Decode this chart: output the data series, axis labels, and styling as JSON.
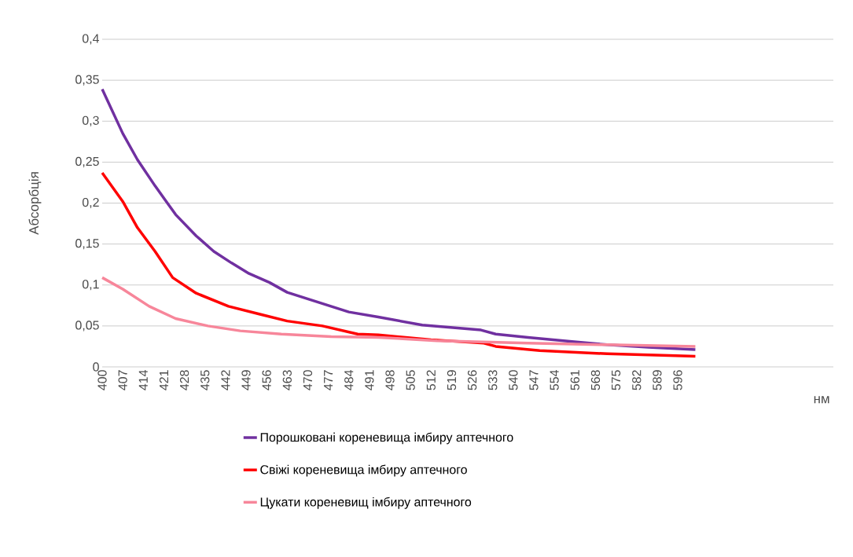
{
  "chart_data": {
    "type": "line",
    "ylabel": "Абсорбція",
    "xlabel": "нм",
    "xlim": [
      400,
      649
    ],
    "ylim": [
      0,
      0.4
    ],
    "xticks": [
      400,
      407,
      414,
      421,
      428,
      435,
      442,
      449,
      456,
      463,
      470,
      477,
      484,
      491,
      498,
      505,
      512,
      519,
      526,
      533,
      540,
      547,
      554,
      561,
      568,
      575,
      582,
      589,
      596
    ],
    "yticks": [
      {
        "value": 0,
        "label": "0"
      },
      {
        "value": 0.05,
        "label": "0,05"
      },
      {
        "value": 0.1,
        "label": "0,1"
      },
      {
        "value": 0.15,
        "label": "0,15"
      },
      {
        "value": 0.2,
        "label": "0,2"
      },
      {
        "value": 0.25,
        "label": "0,25"
      },
      {
        "value": 0.3,
        "label": "0,3"
      },
      {
        "value": 0.35,
        "label": "0,35"
      },
      {
        "value": 0.4,
        "label": "0,4"
      }
    ],
    "grid": "y",
    "legend": "bottom",
    "marker": "none",
    "line_style": "solid",
    "series": [
      {
        "name": "Порошковані кореневища імбиру аптечного",
        "color": "#7030a0",
        "x": [
          400,
          407,
          412,
          418,
          425,
          432,
          438,
          444,
          450,
          457,
          463,
          470,
          477,
          484,
          494,
          509,
          529,
          534,
          545,
          560,
          572,
          586,
          602
        ],
        "values": [
          0.339,
          0.285,
          0.253,
          0.221,
          0.186,
          0.16,
          0.141,
          0.127,
          0.114,
          0.103,
          0.091,
          0.083,
          0.075,
          0.067,
          0.061,
          0.051,
          0.045,
          0.04,
          0.036,
          0.031,
          0.027,
          0.024,
          0.021
        ]
      },
      {
        "name": "Свіжі кореневища імбиру аптечного",
        "color": "#ff0000",
        "x": [
          400,
          407,
          412,
          418,
          424,
          432,
          443,
          454,
          463,
          475,
          487,
          494,
          512,
          530,
          534,
          549,
          572,
          593,
          602
        ],
        "values": [
          0.237,
          0.202,
          0.17,
          0.141,
          0.109,
          0.09,
          0.074,
          0.064,
          0.056,
          0.05,
          0.04,
          0.039,
          0.033,
          0.029,
          0.025,
          0.02,
          0.016,
          0.014,
          0.013
        ]
      },
      {
        "name": "Цукати кореневищ імбиру аптечного",
        "color": "#f7869a",
        "x": [
          400,
          407,
          416,
          425,
          436,
          447,
          461,
          478,
          494,
          514,
          545,
          572,
          602
        ],
        "values": [
          0.109,
          0.095,
          0.074,
          0.059,
          0.05,
          0.044,
          0.04,
          0.037,
          0.036,
          0.032,
          0.029,
          0.027,
          0.025
        ]
      }
    ]
  }
}
